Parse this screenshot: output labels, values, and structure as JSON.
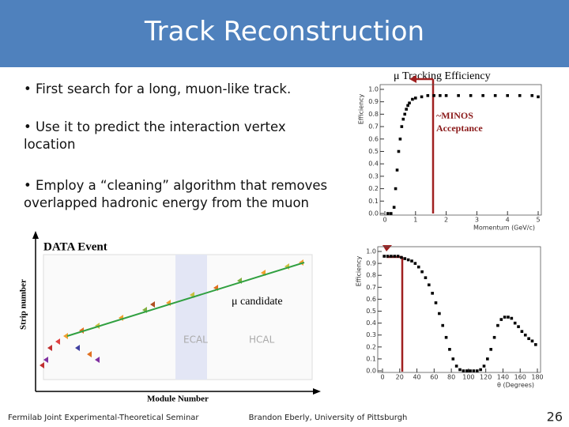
{
  "slide": {
    "title": "Track Reconstruction",
    "bullets": [
      "• First search for a long, muon-like track.",
      "• Use it to predict the interaction vertex location",
      "• Employ a “cleaning” algorithm that removes overlapped hadronic energy from the muon"
    ],
    "event": {
      "title": "DATA Event",
      "y_label": "Strip number",
      "x_label": "Module Number",
      "candidate": "μ candidate",
      "ecal": "ECAL",
      "hcal": "HCAL"
    },
    "annotations": {
      "tracking": "μ Tracking Efficiency",
      "minos_1": "~MINOS",
      "minos_2": "Acceptance"
    },
    "footer": {
      "left": "Fermilab Joint Experimental-Theoretical Seminar",
      "center": "Brandon Eberly, University of Pittsburgh",
      "page": "26"
    }
  },
  "chart_data": [
    {
      "type": "scatter",
      "x_label": "Momentum (GeV/c)",
      "y_label": "Efficiency",
      "color": "#000000",
      "x": [
        0.1,
        0.2,
        0.3,
        0.35,
        0.4,
        0.45,
        0.5,
        0.55,
        0.6,
        0.65,
        0.7,
        0.75,
        0.8,
        0.9,
        1.0,
        1.2,
        1.4,
        1.6,
        1.8,
        2.0,
        2.4,
        2.8,
        3.2,
        3.6,
        4.0,
        4.4,
        4.8,
        5.0
      ],
      "values": [
        0,
        0,
        0.05,
        0.2,
        0.35,
        0.5,
        0.6,
        0.7,
        0.76,
        0.8,
        0.84,
        0.87,
        0.89,
        0.92,
        0.93,
        0.94,
        0.95,
        0.95,
        0.95,
        0.95,
        0.95,
        0.95,
        0.95,
        0.95,
        0.95,
        0.95,
        0.95,
        0.94
      ],
      "xlim": [
        0,
        5
      ],
      "xticks": [
        0,
        1,
        2,
        3,
        4,
        5
      ],
      "ylim": [
        0,
        1
      ],
      "yticks": [
        {
          "value": 0,
          "label": "0.0"
        },
        0.1,
        0.2,
        0.3,
        0.4,
        0.5,
        0.6,
        0.7,
        0.8,
        0.9,
        {
          "value": 1,
          "label": "1.0"
        }
      ]
    },
    {
      "type": "scatter",
      "x_label": "θ (Degrees)",
      "y_label": "Efficiency",
      "color": "#000000",
      "x": [
        2,
        6,
        10,
        14,
        18,
        22,
        26,
        30,
        34,
        38,
        42,
        46,
        50,
        54,
        58,
        62,
        66,
        70,
        74,
        78,
        82,
        86,
        90,
        94,
        98,
        102,
        106,
        110,
        114,
        118,
        122,
        126,
        130,
        134,
        138,
        142,
        146,
        150,
        154,
        158,
        162,
        166,
        170,
        174,
        178
      ],
      "values": [
        0.96,
        0.96,
        0.96,
        0.96,
        0.96,
        0.95,
        0.94,
        0.93,
        0.92,
        0.9,
        0.87,
        0.83,
        0.78,
        0.72,
        0.65,
        0.57,
        0.48,
        0.38,
        0.28,
        0.18,
        0.1,
        0.04,
        0.01,
        0,
        0,
        0,
        0,
        0,
        0.01,
        0.04,
        0.1,
        0.18,
        0.28,
        0.38,
        0.43,
        0.45,
        0.45,
        0.44,
        0.4,
        0.37,
        0.33,
        0.3,
        0.27,
        0.25,
        0.22
      ],
      "xlim": [
        0,
        180
      ],
      "xticks": [
        0,
        20,
        40,
        60,
        80,
        100,
        120,
        140,
        160,
        180
      ],
      "ylim": [
        0,
        1
      ],
      "yticks": [
        {
          "value": 0,
          "label": "0.0"
        },
        0.1,
        0.2,
        0.3,
        0.4,
        0.5,
        0.6,
        0.7,
        0.8,
        0.9,
        {
          "value": 1,
          "label": "1.0"
        }
      ]
    }
  ]
}
